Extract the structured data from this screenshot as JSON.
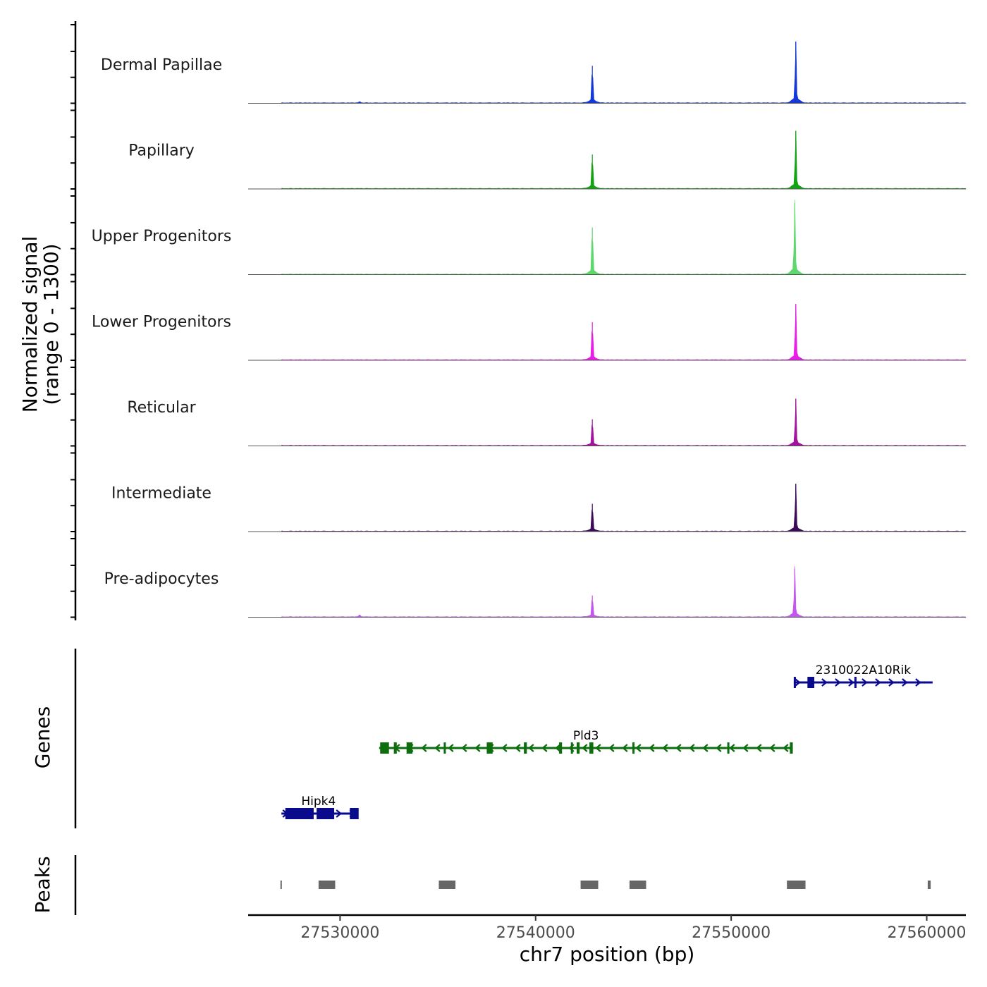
{
  "chart_data": {
    "type": "area",
    "title": "",
    "ylabel": "Normalized signal",
    "ylabel_sub": "(range 0 - 1300)",
    "ylim": [
      0,
      1300
    ],
    "xlabel": "chr7 position (bp)",
    "xlim": [
      27525300,
      27562000
    ],
    "x_ticks": [
      27530000,
      27540000,
      27550000,
      27560000
    ],
    "x_tick_labels": [
      "27530000",
      "27540000",
      "27550000",
      "27560000"
    ],
    "series": [
      {
        "name": "Dermal Papillae",
        "color": "#1539d6",
        "peaks": [
          {
            "x": 27542900,
            "height": 620
          },
          {
            "x": 27553300,
            "height": 1020
          },
          {
            "x": 27531000,
            "height": 25
          }
        ]
      },
      {
        "name": "Papillary",
        "color": "#14a314",
        "peaks": [
          {
            "x": 27542900,
            "height": 570
          },
          {
            "x": 27553300,
            "height": 960
          }
        ]
      },
      {
        "name": "Upper Progenitors",
        "color": "#5ed86d",
        "peaks": [
          {
            "x": 27542900,
            "height": 780
          },
          {
            "x": 27553250,
            "height": 1180
          }
        ]
      },
      {
        "name": "Lower Progenitors",
        "color": "#e81ee8",
        "peaks": [
          {
            "x": 27542900,
            "height": 630
          },
          {
            "x": 27553300,
            "height": 930
          }
        ]
      },
      {
        "name": "Reticular",
        "color": "#a3149c",
        "peaks": [
          {
            "x": 27542900,
            "height": 440
          },
          {
            "x": 27553300,
            "height": 780
          }
        ]
      },
      {
        "name": "Intermediate",
        "color": "#3b0b59",
        "peaks": [
          {
            "x": 27542900,
            "height": 460
          },
          {
            "x": 27553300,
            "height": 790
          }
        ]
      },
      {
        "name": "Pre-adipocytes",
        "color": "#c555f0",
        "peaks": [
          {
            "x": 27542900,
            "height": 360
          },
          {
            "x": 27553250,
            "height": 800
          },
          {
            "x": 27531000,
            "height": 40
          }
        ]
      }
    ],
    "genes_track_label": "Genes",
    "genes": [
      {
        "name": "2310022A10Rik",
        "strand": "+",
        "start": 27553200,
        "end": 27560300,
        "color": "#0a0a8c",
        "exons": [
          [
            27553200,
            27553300
          ],
          [
            27553900,
            27554250
          ],
          [
            27556300,
            27556380
          ]
        ]
      },
      {
        "name": "Pld3",
        "strand": "-",
        "start": 27532000,
        "end": 27553150,
        "color": "#0d6e0d",
        "exons": [
          [
            27532050,
            27532500
          ],
          [
            27532750,
            27532900
          ],
          [
            27533400,
            27533700
          ],
          [
            27535300,
            27535400
          ],
          [
            27537500,
            27537800
          ],
          [
            27539400,
            27539550
          ],
          [
            27541200,
            27541350
          ],
          [
            27541800,
            27541900
          ],
          [
            27542100,
            27542250
          ],
          [
            27542750,
            27542950
          ],
          [
            27544950,
            27545050
          ],
          [
            27549800,
            27549850
          ],
          [
            27553000,
            27553150
          ]
        ]
      },
      {
        "name": "Hipk4",
        "strand": "+",
        "start": 27527000,
        "end": 27530800,
        "color": "#0a0a8c",
        "exons": [
          [
            27527200,
            27528650
          ],
          [
            27528800,
            27529700
          ],
          [
            27530500,
            27530950
          ]
        ]
      }
    ],
    "peaks_track_label": "Peaks",
    "peak_regions": [
      [
        27526950,
        27527000
      ],
      [
        27528900,
        27529750
      ],
      [
        27535050,
        27535900
      ],
      [
        27542300,
        27543200
      ],
      [
        27544800,
        27545650
      ],
      [
        27552850,
        27553800
      ],
      [
        27560050,
        27560200
      ]
    ]
  }
}
